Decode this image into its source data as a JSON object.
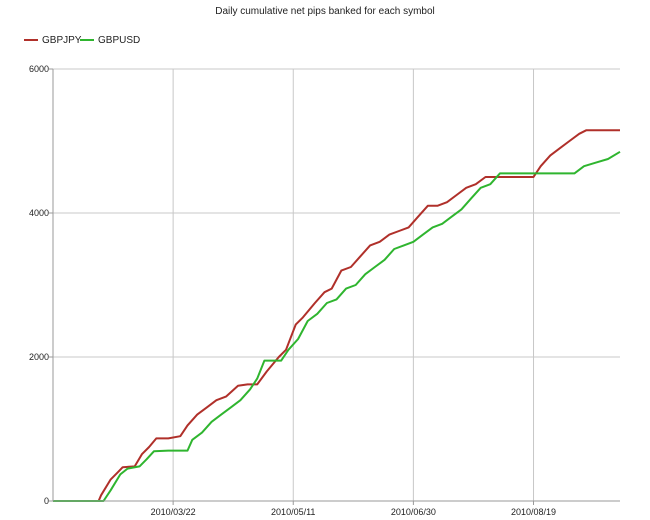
{
  "chart_data": {
    "type": "line",
    "title": "Daily cumulative net pips banked for each symbol",
    "xlabel": "",
    "ylabel": "",
    "legend_placement": "top-left",
    "grid": true,
    "ylim": [
      0,
      6000
    ],
    "xlim": [
      "2010-01-31",
      "2010-09-24"
    ],
    "y_ticks": [
      0,
      2000,
      4000,
      6000
    ],
    "x_ticks": [
      "2010/03/22",
      "2010/05/11",
      "2010/06/30",
      "2010/08/19"
    ],
    "series": [
      {
        "name": "GBPJPY",
        "color": "#b0302a",
        "points": [
          [
            "2010-01-31",
            0
          ],
          [
            "2010-02-19",
            0
          ],
          [
            "2010-02-20",
            80
          ],
          [
            "2010-02-24",
            300
          ],
          [
            "2010-02-27",
            400
          ],
          [
            "2010-03-01",
            470
          ],
          [
            "2010-03-06",
            480
          ],
          [
            "2010-03-09",
            650
          ],
          [
            "2010-03-12",
            750
          ],
          [
            "2010-03-15",
            870
          ],
          [
            "2010-03-20",
            870
          ],
          [
            "2010-03-25",
            900
          ],
          [
            "2010-03-28",
            1050
          ],
          [
            "2010-04-01",
            1200
          ],
          [
            "2010-04-05",
            1300
          ],
          [
            "2010-04-09",
            1400
          ],
          [
            "2010-04-13",
            1450
          ],
          [
            "2010-04-18",
            1600
          ],
          [
            "2010-04-22",
            1620
          ],
          [
            "2010-04-26",
            1620
          ],
          [
            "2010-04-30",
            1800
          ],
          [
            "2010-05-05",
            2000
          ],
          [
            "2010-05-08",
            2100
          ],
          [
            "2010-05-12",
            2450
          ],
          [
            "2010-05-15",
            2550
          ],
          [
            "2010-05-20",
            2750
          ],
          [
            "2010-05-24",
            2900
          ],
          [
            "2010-05-27",
            2950
          ],
          [
            "2010-05-31",
            3200
          ],
          [
            "2010-06-04",
            3250
          ],
          [
            "2010-06-08",
            3400
          ],
          [
            "2010-06-12",
            3550
          ],
          [
            "2010-06-16",
            3600
          ],
          [
            "2010-06-20",
            3700
          ],
          [
            "2010-06-24",
            3750
          ],
          [
            "2010-06-28",
            3800
          ],
          [
            "2010-07-02",
            3950
          ],
          [
            "2010-07-06",
            4100
          ],
          [
            "2010-07-10",
            4100
          ],
          [
            "2010-07-14",
            4150
          ],
          [
            "2010-07-18",
            4250
          ],
          [
            "2010-07-22",
            4350
          ],
          [
            "2010-07-26",
            4400
          ],
          [
            "2010-07-30",
            4500
          ],
          [
            "2010-08-10",
            4500
          ],
          [
            "2010-08-19",
            4500
          ],
          [
            "2010-08-22",
            4650
          ],
          [
            "2010-08-26",
            4800
          ],
          [
            "2010-08-30",
            4900
          ],
          [
            "2010-09-03",
            5000
          ],
          [
            "2010-09-07",
            5100
          ],
          [
            "2010-09-10",
            5150
          ],
          [
            "2010-09-24",
            5150
          ]
        ]
      },
      {
        "name": "GBPUSD",
        "color": "#2fb52f",
        "points": [
          [
            "2010-01-31",
            0
          ],
          [
            "2010-02-21",
            0
          ],
          [
            "2010-02-24",
            150
          ],
          [
            "2010-02-28",
            370
          ],
          [
            "2010-03-03",
            450
          ],
          [
            "2010-03-08",
            480
          ],
          [
            "2010-03-11",
            580
          ],
          [
            "2010-03-14",
            690
          ],
          [
            "2010-03-20",
            700
          ],
          [
            "2010-03-28",
            700
          ],
          [
            "2010-03-30",
            850
          ],
          [
            "2010-04-03",
            950
          ],
          [
            "2010-04-07",
            1100
          ],
          [
            "2010-04-11",
            1200
          ],
          [
            "2010-04-15",
            1300
          ],
          [
            "2010-04-19",
            1400
          ],
          [
            "2010-04-23",
            1550
          ],
          [
            "2010-04-26",
            1700
          ],
          [
            "2010-04-29",
            1950
          ],
          [
            "2010-05-06",
            1950
          ],
          [
            "2010-05-09",
            2100
          ],
          [
            "2010-05-13",
            2250
          ],
          [
            "2010-05-17",
            2500
          ],
          [
            "2010-05-21",
            2600
          ],
          [
            "2010-05-25",
            2750
          ],
          [
            "2010-05-29",
            2800
          ],
          [
            "2010-06-02",
            2950
          ],
          [
            "2010-06-06",
            3000
          ],
          [
            "2010-06-10",
            3150
          ],
          [
            "2010-06-14",
            3250
          ],
          [
            "2010-06-18",
            3350
          ],
          [
            "2010-06-22",
            3500
          ],
          [
            "2010-06-26",
            3550
          ],
          [
            "2010-06-30",
            3600
          ],
          [
            "2010-07-04",
            3700
          ],
          [
            "2010-07-08",
            3800
          ],
          [
            "2010-07-12",
            3850
          ],
          [
            "2010-07-16",
            3950
          ],
          [
            "2010-07-20",
            4050
          ],
          [
            "2010-07-24",
            4200
          ],
          [
            "2010-07-28",
            4350
          ],
          [
            "2010-08-01",
            4400
          ],
          [
            "2010-08-05",
            4550
          ],
          [
            "2010-08-15",
            4550
          ],
          [
            "2010-08-20",
            4550
          ],
          [
            "2010-09-05",
            4550
          ],
          [
            "2010-09-09",
            4650
          ],
          [
            "2010-09-14",
            4700
          ],
          [
            "2010-09-19",
            4750
          ],
          [
            "2010-09-24",
            4850
          ]
        ]
      }
    ]
  }
}
